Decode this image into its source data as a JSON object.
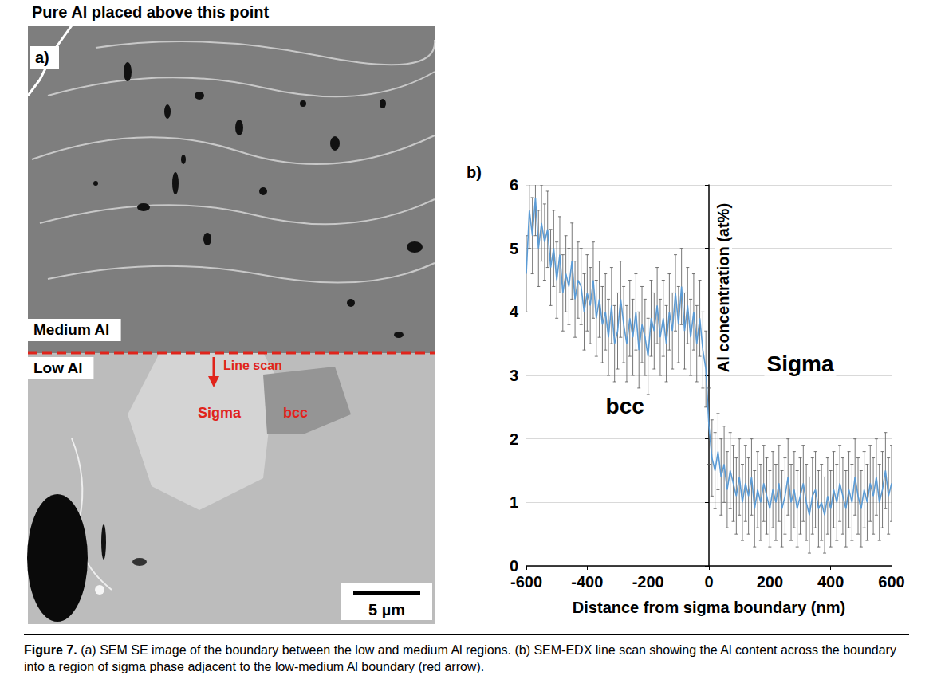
{
  "figure": {
    "label": "Figure 7.",
    "caption": "(a) SEM SE image of the boundary between the low and medium Al regions. (b) SEM-EDX line scan showing the Al content across the boundary into a region of sigma phase adjacent to the low-medium Al boundary (red arrow)."
  },
  "panel_a": {
    "panel": "a)",
    "heading": "Pure Al placed above this point",
    "regions": [
      "Medium Al",
      "Low Al"
    ],
    "annotations": [
      "Line scan",
      "Sigma",
      "bcc"
    ],
    "scale_bar": "5 µm"
  },
  "chart_data": {
    "panel": "b)",
    "type": "line",
    "xlabel": "Distance from sigma boundary (nm)",
    "ylabel": "Al concentration (at%)",
    "color": "#5b9bd5",
    "x": [
      -600,
      -590,
      -580,
      -570,
      -560,
      -550,
      -540,
      -530,
      -520,
      -510,
      -500,
      -490,
      -480,
      -470,
      -460,
      -450,
      -440,
      -430,
      -420,
      -410,
      -400,
      -390,
      -380,
      -370,
      -360,
      -350,
      -340,
      -330,
      -320,
      -310,
      -300,
      -290,
      -280,
      -270,
      -260,
      -250,
      -240,
      -230,
      -220,
      -210,
      -200,
      -190,
      -180,
      -170,
      -160,
      -150,
      -140,
      -130,
      -120,
      -110,
      -100,
      -90,
      -80,
      -70,
      -60,
      -50,
      -40,
      -30,
      -20,
      -10,
      0,
      10,
      20,
      30,
      40,
      50,
      60,
      70,
      80,
      90,
      100,
      110,
      120,
      130,
      140,
      150,
      160,
      170,
      180,
      190,
      200,
      210,
      220,
      230,
      240,
      250,
      260,
      270,
      280,
      290,
      300,
      310,
      320,
      330,
      340,
      350,
      360,
      370,
      380,
      390,
      400,
      410,
      420,
      430,
      440,
      450,
      460,
      470,
      480,
      490,
      500,
      510,
      520,
      530,
      540,
      550,
      560,
      570,
      580,
      590,
      600
    ],
    "values": [
      4.6,
      5.6,
      5.2,
      5.8,
      5.0,
      5.4,
      5.1,
      5.3,
      4.7,
      5.0,
      4.5,
      4.9,
      4.3,
      4.6,
      4.4,
      4.8,
      4.2,
      4.5,
      4.4,
      4.0,
      4.3,
      4.1,
      4.5,
      3.9,
      4.2,
      3.8,
      4.0,
      3.6,
      4.1,
      3.5,
      3.7,
      4.2,
      3.8,
      3.5,
      3.9,
      3.6,
      4.0,
      3.4,
      3.8,
      3.6,
      3.3,
      3.9,
      3.7,
      4.1,
      3.6,
      3.9,
      3.5,
      4.0,
      3.7,
      4.3,
      3.8,
      4.4,
      3.7,
      4.1,
      3.6,
      4.0,
      3.5,
      3.9,
      3.4,
      3.1,
      2.2,
      1.7,
      1.5,
      1.8,
      1.4,
      1.6,
      1.2,
      1.5,
      1.3,
      1.1,
      1.4,
      1.0,
      1.3,
      1.1,
      1.4,
      0.9,
      1.2,
      1.0,
      1.3,
      1.1,
      0.9,
      1.2,
      1.0,
      1.3,
      0.9,
      1.1,
      1.4,
      1.0,
      1.2,
      0.9,
      1.1,
      1.3,
      1.0,
      0.8,
      1.1,
      1.2,
      0.9,
      1.0,
      0.8,
      1.1,
      0.9,
      1.2,
      1.0,
      1.3,
      1.1,
      0.9,
      1.2,
      1.0,
      1.4,
      1.1,
      0.9,
      1.2,
      1.0,
      1.3,
      1.1,
      1.4,
      1.0,
      1.2,
      1.5,
      1.1,
      1.3
    ],
    "error": 0.6,
    "xlim": [
      -600,
      600
    ],
    "xticks": [
      -600,
      -400,
      -200,
      0,
      200,
      400,
      600
    ],
    "ylim": [
      0,
      6
    ],
    "yticks": [
      0,
      1,
      2,
      3,
      4,
      5,
      6
    ],
    "grid": true,
    "annotations": [
      "bcc",
      "Sigma"
    ]
  }
}
